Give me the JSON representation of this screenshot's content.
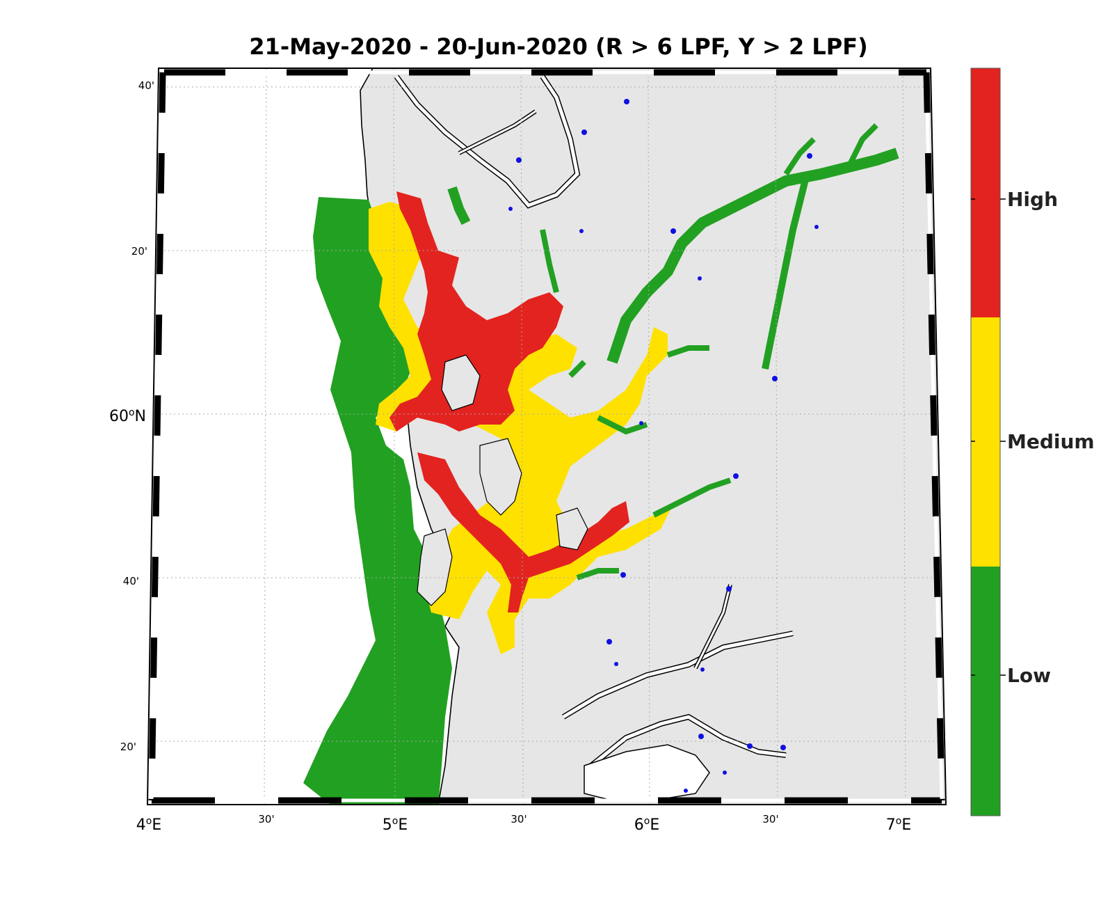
{
  "title": "21-May-2020  - 20-Jun-2020  (R > 6 LPF, Y > 2 LPF)",
  "axes": {
    "lon_ticks": [
      {
        "label": "4",
        "suffix": "E",
        "major": true
      },
      {
        "label": "30'",
        "suffix": "",
        "major": false
      },
      {
        "label": "5",
        "suffix": "E",
        "major": true
      },
      {
        "label": "30'",
        "suffix": "",
        "major": false
      },
      {
        "label": "6",
        "suffix": "E",
        "major": true
      },
      {
        "label": "30'",
        "suffix": "",
        "major": false
      },
      {
        "label": "7",
        "suffix": "E",
        "major": true
      }
    ],
    "lat_ticks": [
      {
        "label": "20'",
        "major": false
      },
      {
        "label": "40'",
        "major": false
      },
      {
        "label": "60",
        "suffix": "N",
        "major": true
      },
      {
        "label": "20'",
        "major": false
      },
      {
        "label": "40'",
        "major": false
      }
    ],
    "lon_range": [
      "4E",
      "7.17E"
    ],
    "lat_range": [
      "59.2N",
      "60.7N"
    ],
    "grid": "dotted"
  },
  "legend": {
    "levels": [
      {
        "label": "High",
        "color": "#e3231f"
      },
      {
        "label": "Medium",
        "color": "#ffe100"
      },
      {
        "label": "Low",
        "color": "#22a022"
      }
    ]
  },
  "colors": {
    "land": "#e6e6e6",
    "sea": "#ffffff",
    "coast": "#000000",
    "stations": "#1010e0"
  }
}
